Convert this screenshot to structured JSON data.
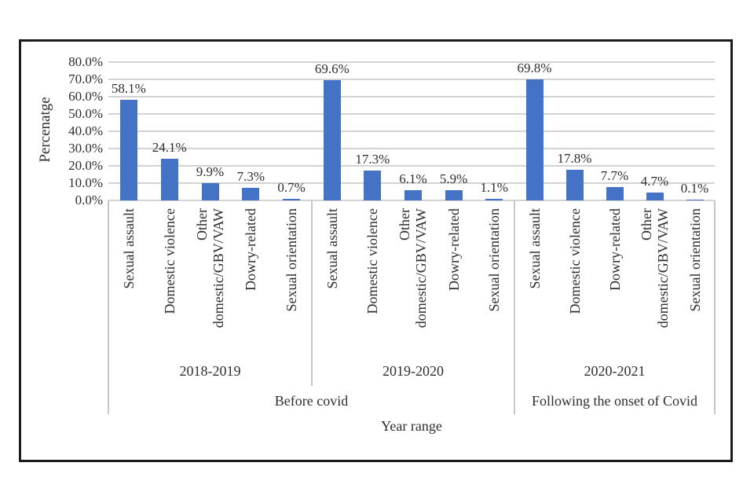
{
  "chart_data": {
    "type": "bar",
    "xlabel": "Year range",
    "ylabel": "Percenatge",
    "ylim": [
      0,
      80
    ],
    "ytick_step": 10,
    "ytick_labels": [
      "0.0%",
      "10.0%",
      "20.0%",
      "30.0%",
      "40.0%",
      "50.0%",
      "60.0%",
      "70.0%",
      "80.0%"
    ],
    "bar_color": "#4472C4",
    "gridline_color": "#d3d3d3",
    "grid": "horizontal",
    "legend": "none",
    "groups": [
      {
        "year": "2018-2019",
        "period": "Before covid",
        "categories": [
          "Sexual assault",
          "Domestic violence",
          "Other\ndomestic/GBV/VAW",
          "Dowry-related",
          "Sexual orientation"
        ],
        "values": [
          58.1,
          24.1,
          9.9,
          7.3,
          0.7
        ],
        "value_labels": [
          "58.1%",
          "24.1%",
          "9.9%",
          "7.3%",
          "0.7%"
        ]
      },
      {
        "year": "2019-2020",
        "period": "Before covid",
        "categories": [
          "Sexual assault",
          "Domestic violence",
          "Other\ndomestic/GBV/VAW",
          "Dowry-related",
          "Sexual orientation"
        ],
        "values": [
          69.6,
          17.3,
          6.1,
          5.9,
          1.1
        ],
        "value_labels": [
          "69.6%",
          "17.3%",
          "6.1%",
          "5.9%",
          "1.1%"
        ]
      },
      {
        "year": "2020-2021",
        "period": "Following the onset of Covid",
        "categories": [
          "Sexual assault",
          "Domestic violence",
          "Dowry-related",
          "Other\ndomestic/GBV/VAW",
          "Sexual orientation"
        ],
        "values": [
          69.8,
          17.8,
          7.7,
          4.7,
          0.1
        ],
        "value_labels": [
          "69.8%",
          "17.8%",
          "7.7%",
          "4.7%",
          "0.1%"
        ]
      }
    ],
    "periods": [
      {
        "label": "Before covid",
        "group_indexes": [
          0,
          1
        ]
      },
      {
        "label": "Following the onset of Covid",
        "group_indexes": [
          2
        ]
      }
    ]
  }
}
